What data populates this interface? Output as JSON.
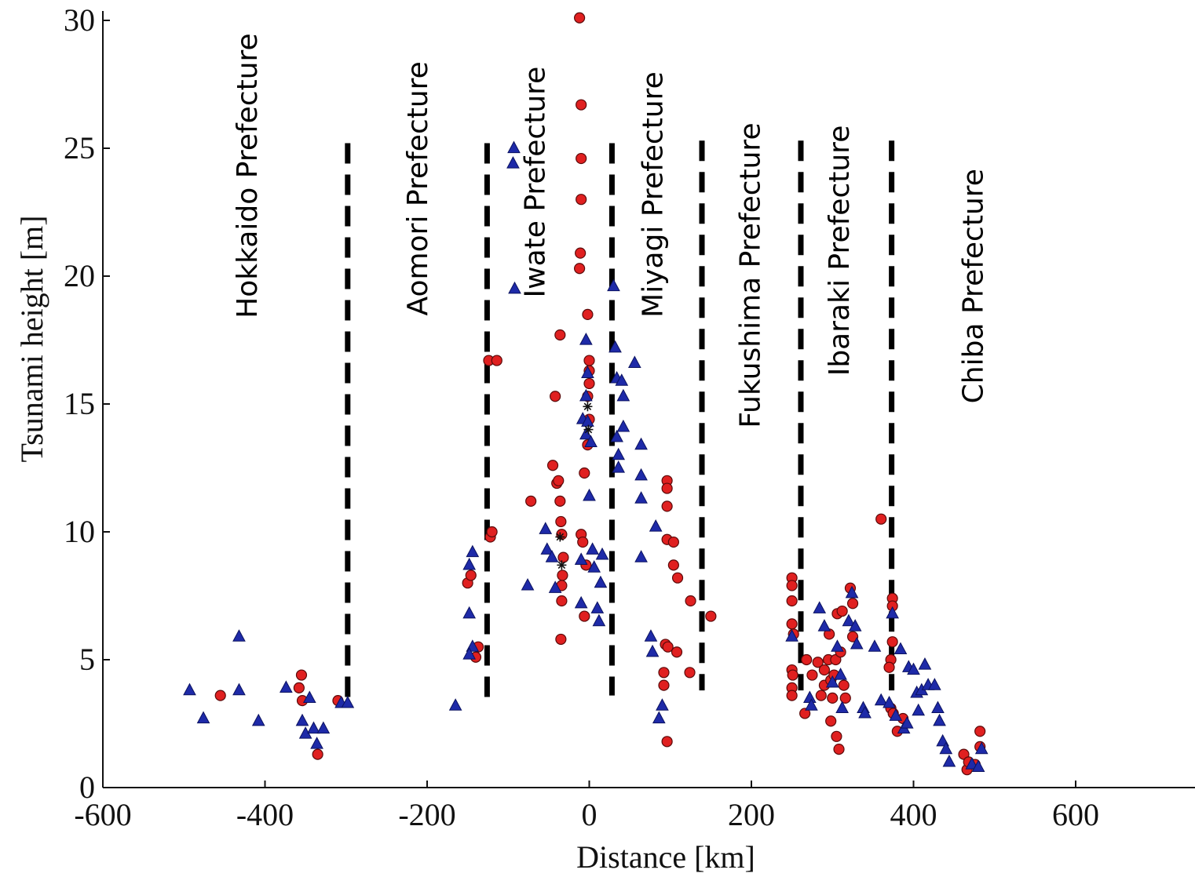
{
  "chart_data": {
    "type": "scatter",
    "xlabel": "Distance [km]",
    "ylabel": "Tsunami height [m]",
    "xlim": [
      -600,
      750
    ],
    "ylim": [
      0,
      30
    ],
    "x_ticks": [
      "-600",
      "-400",
      "-200",
      "0",
      "200",
      "400",
      "600"
    ],
    "y_ticks": [
      "0",
      "5",
      "10",
      "15",
      "20",
      "25",
      "30"
    ],
    "grid": false,
    "legend": "none",
    "colors": {
      "circle": "#e02020",
      "circle_edge": "#5a0a0a",
      "triangle": "#1e2aa8",
      "boundary": "#000000"
    },
    "regions": [
      {
        "label": "Hokkaido Prefecture",
        "x_center": -410,
        "y_top": 29.5
      },
      {
        "label": "Aomori Prefecture",
        "x_center": -200,
        "y_top": 28.4
      },
      {
        "label": "Iwate Prefecture",
        "x_center": -55,
        "y_top": 28.2
      },
      {
        "label": "Miyagi Prefecture",
        "x_center": 90,
        "y_top": 28.0
      },
      {
        "label": "Fukushima Prefecture",
        "x_center": 210,
        "y_top": 26.0
      },
      {
        "label": "Ibaraki Prefecture",
        "x_center": 320,
        "y_top": 25.9
      },
      {
        "label": "Chiba Prefecture",
        "x_center": 485,
        "y_top": 24.2
      }
    ],
    "boundaries": [
      {
        "x": -298,
        "y_range": [
          3.5,
          25.2
        ]
      },
      {
        "x": -126,
        "y_range": [
          3.5,
          25.2
        ]
      },
      {
        "x": 28,
        "y_range": [
          3.6,
          25.2
        ]
      },
      {
        "x": 139,
        "y_range": [
          3.8,
          25.3
        ]
      },
      {
        "x": 261,
        "y_range": [
          3.8,
          25.3
        ]
      },
      {
        "x": 373,
        "y_range": [
          3.8,
          25.3
        ]
      }
    ],
    "series": [
      {
        "marker": "circle",
        "points": [
          [
            -455,
            3.6
          ],
          [
            -355,
            4.4
          ],
          [
            -358,
            3.9
          ],
          [
            -354,
            3.4
          ],
          [
            -335,
            1.3
          ],
          [
            -310,
            3.4
          ],
          [
            -150,
            8.0
          ],
          [
            -146,
            8.3
          ],
          [
            -140,
            5.1
          ],
          [
            -137,
            5.5
          ],
          [
            -124,
            16.7
          ],
          [
            -114,
            16.7
          ],
          [
            -122,
            9.8
          ],
          [
            -120,
            10.0
          ],
          [
            -72,
            11.2
          ],
          [
            -45,
            12.6
          ],
          [
            -42,
            15.3
          ],
          [
            -40,
            11.9
          ],
          [
            -38,
            12.0
          ],
          [
            -36,
            17.7
          ],
          [
            -36,
            11.2
          ],
          [
            -35,
            10.4
          ],
          [
            -34,
            9.9
          ],
          [
            -32,
            9.0
          ],
          [
            -33,
            8.3
          ],
          [
            -34,
            7.9
          ],
          [
            -34,
            7.3
          ],
          [
            -35,
            5.8
          ],
          [
            -12,
            30.1
          ],
          [
            -10,
            26.7
          ],
          [
            -10,
            24.6
          ],
          [
            -10,
            23.0
          ],
          [
            -11,
            20.9
          ],
          [
            -12,
            20.3
          ],
          [
            -2,
            18.5
          ],
          [
            0,
            16.7
          ],
          [
            0,
            16.3
          ],
          [
            0,
            15.8
          ],
          [
            -2,
            15.3
          ],
          [
            0,
            14.4
          ],
          [
            -2,
            13.4
          ],
          [
            -6,
            12.3
          ],
          [
            -10,
            9.9
          ],
          [
            -8,
            9.6
          ],
          [
            -4,
            8.7
          ],
          [
            -6,
            6.7
          ],
          [
            96,
            12.0
          ],
          [
            96,
            11.7
          ],
          [
            96,
            11.0
          ],
          [
            96,
            9.7
          ],
          [
            104,
            9.6
          ],
          [
            104,
            8.7
          ],
          [
            109,
            8.2
          ],
          [
            94,
            5.6
          ],
          [
            97,
            5.5
          ],
          [
            108,
            5.3
          ],
          [
            92,
            4.5
          ],
          [
            124,
            4.5
          ],
          [
            92,
            4.0
          ],
          [
            125,
            7.3
          ],
          [
            150,
            6.7
          ],
          [
            96,
            1.8
          ],
          [
            250,
            8.2
          ],
          [
            250,
            7.9
          ],
          [
            250,
            7.3
          ],
          [
            250,
            6.4
          ],
          [
            252,
            6.0
          ],
          [
            250,
            4.6
          ],
          [
            251,
            4.4
          ],
          [
            250,
            3.9
          ],
          [
            250,
            3.6
          ],
          [
            268,
            5.0
          ],
          [
            275,
            4.4
          ],
          [
            266,
            2.9
          ],
          [
            282,
            4.9
          ],
          [
            286,
            3.6
          ],
          [
            290,
            4.0
          ],
          [
            290,
            4.6
          ],
          [
            295,
            5.0
          ],
          [
            296,
            6.0
          ],
          [
            298,
            4.2
          ],
          [
            300,
            3.5
          ],
          [
            302,
            4.4
          ],
          [
            304,
            5.0
          ],
          [
            306,
            6.8
          ],
          [
            310,
            5.3
          ],
          [
            312,
            6.9
          ],
          [
            314,
            4.0
          ],
          [
            316,
            3.5
          ],
          [
            322,
            7.8
          ],
          [
            325,
            7.2
          ],
          [
            325,
            5.9
          ],
          [
            305,
            2.0
          ],
          [
            308,
            1.5
          ],
          [
            298,
            2.6
          ],
          [
            360,
            10.5
          ],
          [
            374,
            7.4
          ],
          [
            374,
            7.1
          ],
          [
            374,
            5.7
          ],
          [
            372,
            5.0
          ],
          [
            370,
            4.7
          ],
          [
            372,
            3.1
          ],
          [
            375,
            2.9
          ],
          [
            380,
            2.2
          ],
          [
            387,
            2.7
          ],
          [
            466,
            0.7
          ],
          [
            462,
            1.3
          ],
          [
            468,
            1.0
          ],
          [
            482,
            1.6
          ],
          [
            482,
            2.2
          ],
          [
            476,
            0.9
          ]
        ]
      },
      {
        "marker": "triangle",
        "points": [
          [
            -493,
            3.8
          ],
          [
            -476,
            2.7
          ],
          [
            -432,
            5.9
          ],
          [
            -432,
            3.8
          ],
          [
            -408,
            2.6
          ],
          [
            -374,
            3.9
          ],
          [
            -345,
            3.5
          ],
          [
            -354,
            2.6
          ],
          [
            -350,
            2.1
          ],
          [
            -340,
            2.3
          ],
          [
            -328,
            2.3
          ],
          [
            -336,
            1.7
          ],
          [
            -306,
            3.3
          ],
          [
            -298,
            3.3
          ],
          [
            -165,
            3.2
          ],
          [
            -144,
            9.2
          ],
          [
            -148,
            8.7
          ],
          [
            -148,
            6.8
          ],
          [
            -144,
            5.5
          ],
          [
            -148,
            5.2
          ],
          [
            -93,
            25.0
          ],
          [
            -94,
            24.4
          ],
          [
            -92,
            19.5
          ],
          [
            -76,
            7.9
          ],
          [
            -54,
            10.1
          ],
          [
            -52,
            9.3
          ],
          [
            -46,
            9.0
          ],
          [
            -42,
            7.8
          ],
          [
            -10,
            8.9
          ],
          [
            -10,
            7.2
          ],
          [
            -8,
            14.4
          ],
          [
            -4,
            17.5
          ],
          [
            -2,
            16.2
          ],
          [
            -4,
            15.3
          ],
          [
            -2,
            14.3
          ],
          [
            -4,
            13.8
          ],
          [
            0,
            11.4
          ],
          [
            2,
            13.5
          ],
          [
            4,
            9.3
          ],
          [
            6,
            8.6
          ],
          [
            10,
            7.0
          ],
          [
            12,
            6.5
          ],
          [
            14,
            8.0
          ],
          [
            16,
            9.1
          ],
          [
            30,
            19.6
          ],
          [
            32,
            17.2
          ],
          [
            34,
            16.0
          ],
          [
            34,
            13.7
          ],
          [
            36,
            13.0
          ],
          [
            36,
            12.5
          ],
          [
            40,
            15.9
          ],
          [
            42,
            15.3
          ],
          [
            42,
            14.1
          ],
          [
            56,
            16.6
          ],
          [
            64,
            13.4
          ],
          [
            64,
            12.2
          ],
          [
            64,
            11.3
          ],
          [
            64,
            9.0
          ],
          [
            82,
            10.2
          ],
          [
            76,
            5.9
          ],
          [
            78,
            5.3
          ],
          [
            86,
            2.7
          ],
          [
            90,
            3.2
          ],
          [
            250,
            5.9
          ],
          [
            272,
            3.5
          ],
          [
            274,
            3.2
          ],
          [
            284,
            7.0
          ],
          [
            290,
            6.3
          ],
          [
            300,
            4.1
          ],
          [
            306,
            5.5
          ],
          [
            310,
            4.4
          ],
          [
            312,
            3.1
          ],
          [
            320,
            6.5
          ],
          [
            324,
            7.6
          ],
          [
            328,
            6.3
          ],
          [
            330,
            5.6
          ],
          [
            338,
            3.1
          ],
          [
            340,
            2.9
          ],
          [
            352,
            5.5
          ],
          [
            360,
            3.4
          ],
          [
            370,
            3.3
          ],
          [
            374,
            6.8
          ],
          [
            378,
            2.8
          ],
          [
            384,
            5.4
          ],
          [
            388,
            2.3
          ],
          [
            392,
            2.5
          ],
          [
            394,
            4.7
          ],
          [
            400,
            4.6
          ],
          [
            404,
            3.7
          ],
          [
            406,
            3.0
          ],
          [
            410,
            3.8
          ],
          [
            414,
            4.8
          ],
          [
            418,
            4.0
          ],
          [
            426,
            4.0
          ],
          [
            430,
            3.1
          ],
          [
            432,
            2.6
          ],
          [
            436,
            1.8
          ],
          [
            440,
            1.5
          ],
          [
            444,
            1.0
          ],
          [
            472,
            0.9
          ],
          [
            480,
            0.8
          ],
          [
            484,
            1.5
          ]
        ]
      },
      {
        "marker": "asterisk",
        "points": [
          [
            -36,
            9.8
          ],
          [
            -34,
            8.7
          ],
          [
            -2,
            14.9
          ],
          [
            -1,
            14.0
          ]
        ]
      }
    ]
  }
}
